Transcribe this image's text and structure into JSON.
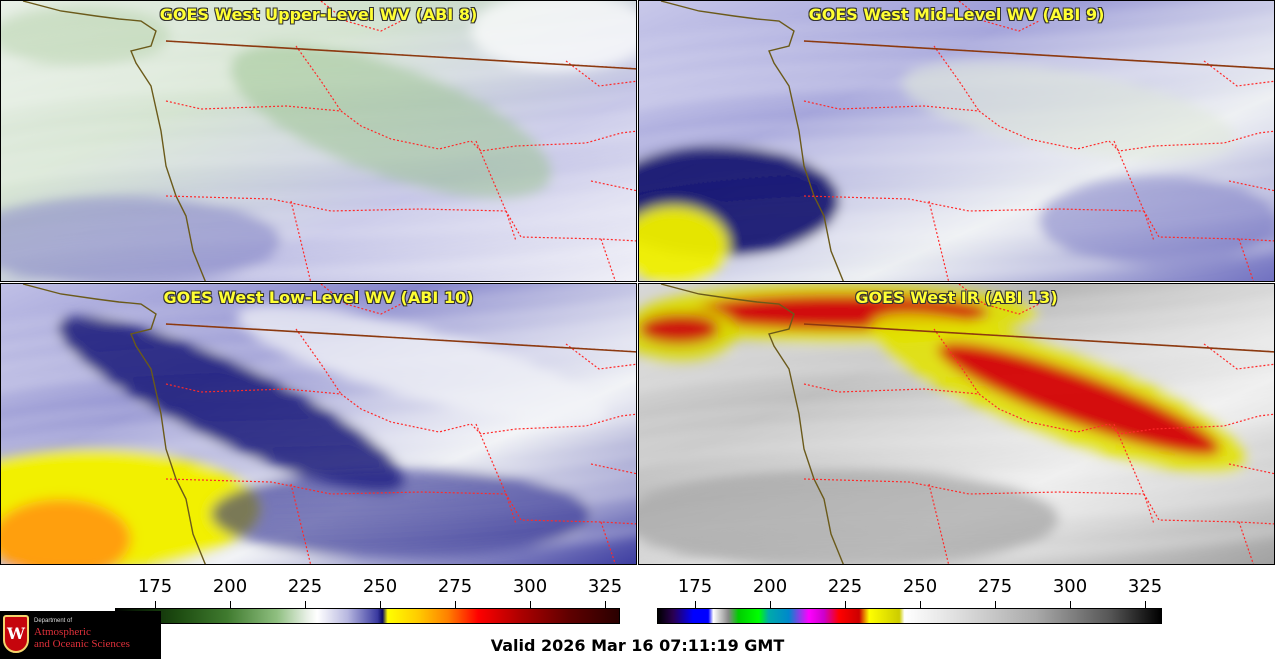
{
  "panels": [
    {
      "id": "p1",
      "title": "GOES West Upper-Level WV (ABI 8)",
      "palette": "upper"
    },
    {
      "id": "p2",
      "title": "GOES West Mid-Level WV (ABI 9)",
      "palette": "mid"
    },
    {
      "id": "p3",
      "title": "GOES West Low-Level WV (ABI 10)",
      "palette": "low"
    },
    {
      "id": "p4",
      "title": "GOES West IR (ABI 13)",
      "palette": "ir"
    }
  ],
  "colorbar_wv": {
    "ticks": [
      "175",
      "200",
      "225",
      "250",
      "275",
      "300",
      "325"
    ]
  },
  "colorbar_ir": {
    "ticks": [
      "175",
      "200",
      "225",
      "250",
      "275",
      "300",
      "325"
    ]
  },
  "footer": {
    "valid_time": "Valid 2026 Mar 16 07:11:19 GMT"
  },
  "logo": {
    "dept": "Department of",
    "name_line1": "Atmospheric",
    "name_line2": "and Oceanic Sciences",
    "crest_letter": "W"
  },
  "colors": {
    "coast": "#6b5a1a",
    "border": "#ff2a2a",
    "country": "#8b3a10"
  }
}
